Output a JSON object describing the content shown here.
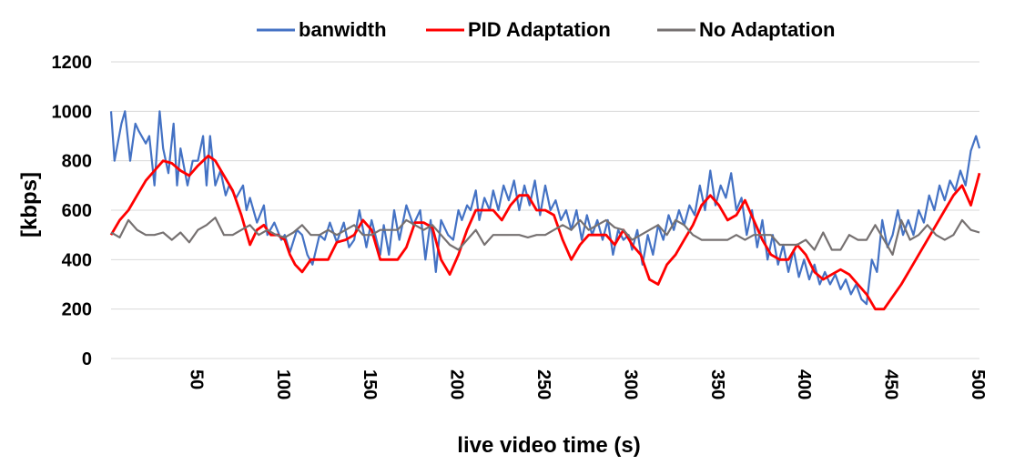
{
  "chart_data": {
    "type": "line",
    "xlabel": "live video time (s)",
    "ylabel": "[kbps]",
    "xlim": [
      0,
      500
    ],
    "ylim": [
      0,
      1200
    ],
    "x_ticks": [
      50,
      100,
      150,
      200,
      250,
      300,
      350,
      400,
      450,
      500
    ],
    "y_ticks": [
      0,
      200,
      400,
      600,
      800,
      1000,
      1200
    ],
    "grid": "horizontal",
    "legend_position": "top",
    "series": [
      {
        "name": "banwidth",
        "color": "#4472C4",
        "x": [
          0,
          2,
          6,
          8,
          11,
          14,
          16,
          20,
          22,
          25,
          28,
          30,
          33,
          36,
          38,
          40,
          44,
          47,
          50,
          53,
          55,
          57,
          60,
          63,
          66,
          68,
          72,
          76,
          78,
          80,
          84,
          88,
          90,
          94,
          98,
          100,
          103,
          107,
          110,
          113,
          116,
          120,
          123,
          126,
          130,
          134,
          137,
          140,
          143,
          147,
          150,
          155,
          157,
          160,
          163,
          166,
          170,
          174,
          178,
          181,
          184,
          187,
          190,
          194,
          197,
          200,
          202,
          205,
          207,
          210,
          212,
          215,
          218,
          220,
          223,
          226,
          229,
          232,
          235,
          238,
          241,
          244,
          247,
          250,
          253,
          256,
          259,
          262,
          265,
          268,
          271,
          274,
          277,
          280,
          283,
          286,
          289,
          292,
          295,
          298,
          300,
          303,
          306,
          309,
          312,
          315,
          318,
          321,
          324,
          327,
          330,
          333,
          336,
          339,
          342,
          345,
          348,
          351,
          354,
          357,
          360,
          363,
          366,
          369,
          372,
          375,
          378,
          381,
          384,
          387,
          390,
          393,
          396,
          399,
          402,
          405,
          408,
          411,
          414,
          417,
          420,
          423,
          426,
          429,
          432,
          435,
          438,
          441,
          444,
          447,
          450,
          453,
          456,
          459,
          462,
          465,
          468,
          471,
          474,
          477,
          480,
          483,
          486,
          489,
          492,
          495,
          498,
          500
        ],
        "values": [
          1000,
          800,
          950,
          1000,
          800,
          950,
          920,
          870,
          900,
          700,
          1000,
          850,
          750,
          950,
          700,
          850,
          700,
          800,
          800,
          900,
          700,
          900,
          700,
          760,
          660,
          700,
          650,
          700,
          600,
          650,
          550,
          620,
          500,
          550,
          480,
          500,
          430,
          520,
          500,
          420,
          380,
          500,
          480,
          550,
          470,
          550,
          450,
          480,
          600,
          450,
          560,
          420,
          540,
          420,
          600,
          480,
          620,
          540,
          600,
          400,
          560,
          350,
          560,
          500,
          480,
          600,
          560,
          620,
          600,
          680,
          560,
          650,
          600,
          680,
          600,
          700,
          640,
          720,
          600,
          700,
          620,
          720,
          580,
          700,
          600,
          640,
          560,
          600,
          520,
          600,
          480,
          580,
          500,
          560,
          480,
          560,
          420,
          520,
          480,
          500,
          440,
          520,
          380,
          500,
          420,
          540,
          480,
          580,
          520,
          600,
          540,
          620,
          580,
          700,
          600,
          760,
          620,
          700,
          650,
          750,
          600,
          650,
          500,
          600,
          450,
          560,
          400,
          500,
          380,
          460,
          350,
          440,
          330,
          400,
          320,
          380,
          300,
          350,
          300,
          340,
          280,
          320,
          260,
          300,
          240,
          220,
          400,
          350,
          560,
          450,
          500,
          600,
          500,
          560,
          500,
          600,
          550,
          660,
          600,
          700,
          640,
          720,
          680,
          760,
          700,
          840,
          900,
          850
        ]
      },
      {
        "name": "PID Adaptation",
        "color": "#FF0000",
        "x": [
          0,
          5,
          10,
          15,
          20,
          25,
          30,
          35,
          40,
          45,
          50,
          53,
          56,
          60,
          65,
          70,
          75,
          80,
          84,
          88,
          92,
          96,
          100,
          103,
          106,
          110,
          115,
          120,
          125,
          130,
          135,
          140,
          145,
          150,
          155,
          160,
          165,
          170,
          175,
          180,
          185,
          190,
          195,
          200,
          205,
          210,
          215,
          220,
          225,
          230,
          235,
          240,
          245,
          250,
          255,
          260,
          265,
          270,
          275,
          280,
          285,
          290,
          295,
          300,
          305,
          310,
          315,
          320,
          325,
          330,
          335,
          340,
          345,
          350,
          355,
          360,
          365,
          370,
          375,
          380,
          385,
          390,
          395,
          400,
          405,
          410,
          415,
          420,
          425,
          430,
          435,
          440,
          445,
          450,
          455,
          460,
          465,
          470,
          475,
          480,
          485,
          490,
          495,
          500
        ],
        "values": [
          500,
          560,
          600,
          660,
          720,
          760,
          800,
          790,
          760,
          740,
          780,
          800,
          820,
          800,
          740,
          680,
          580,
          460,
          520,
          540,
          500,
          500,
          480,
          420,
          380,
          350,
          400,
          400,
          400,
          470,
          480,
          500,
          560,
          520,
          400,
          400,
          400,
          450,
          550,
          550,
          530,
          400,
          340,
          420,
          520,
          600,
          600,
          600,
          560,
          620,
          660,
          660,
          600,
          600,
          580,
          480,
          400,
          460,
          500,
          500,
          500,
          460,
          520,
          460,
          420,
          320,
          300,
          380,
          420,
          480,
          540,
          620,
          660,
          620,
          560,
          580,
          640,
          560,
          480,
          420,
          400,
          400,
          460,
          420,
          350,
          320,
          340,
          360,
          340,
          300,
          260,
          200,
          200,
          250,
          300,
          360,
          420,
          480,
          540,
          600,
          660,
          700,
          620,
          750
        ]
      },
      {
        "name": "No Adaptation",
        "color": "#767171",
        "x": [
          0,
          5,
          10,
          15,
          20,
          25,
          30,
          35,
          40,
          45,
          50,
          55,
          60,
          65,
          70,
          75,
          80,
          85,
          90,
          95,
          100,
          105,
          110,
          115,
          120,
          125,
          130,
          135,
          140,
          145,
          150,
          155,
          160,
          165,
          170,
          175,
          180,
          185,
          190,
          195,
          200,
          205,
          210,
          215,
          220,
          225,
          230,
          235,
          240,
          245,
          250,
          255,
          260,
          265,
          270,
          275,
          280,
          285,
          290,
          295,
          300,
          305,
          310,
          315,
          320,
          325,
          330,
          335,
          340,
          345,
          350,
          355,
          360,
          365,
          370,
          375,
          380,
          385,
          390,
          395,
          400,
          405,
          410,
          415,
          420,
          425,
          430,
          435,
          440,
          445,
          450,
          455,
          460,
          465,
          470,
          475,
          480,
          485,
          490,
          495,
          500
        ],
        "values": [
          510,
          490,
          560,
          520,
          500,
          500,
          510,
          480,
          510,
          470,
          520,
          540,
          570,
          500,
          500,
          520,
          540,
          500,
          520,
          500,
          490,
          510,
          540,
          500,
          500,
          520,
          500,
          520,
          540,
          500,
          500,
          520,
          520,
          520,
          560,
          540,
          520,
          540,
          500,
          460,
          440,
          480,
          520,
          460,
          500,
          500,
          500,
          500,
          490,
          500,
          500,
          520,
          540,
          520,
          560,
          520,
          540,
          560,
          530,
          520,
          480,
          500,
          520,
          540,
          500,
          560,
          540,
          500,
          480,
          480,
          480,
          480,
          500,
          480,
          500,
          500,
          500,
          460,
          460,
          460,
          480,
          440,
          510,
          440,
          440,
          500,
          480,
          480,
          540,
          480,
          420,
          560,
          480,
          500,
          540,
          500,
          480,
          500,
          560,
          520,
          510
        ]
      }
    ]
  }
}
